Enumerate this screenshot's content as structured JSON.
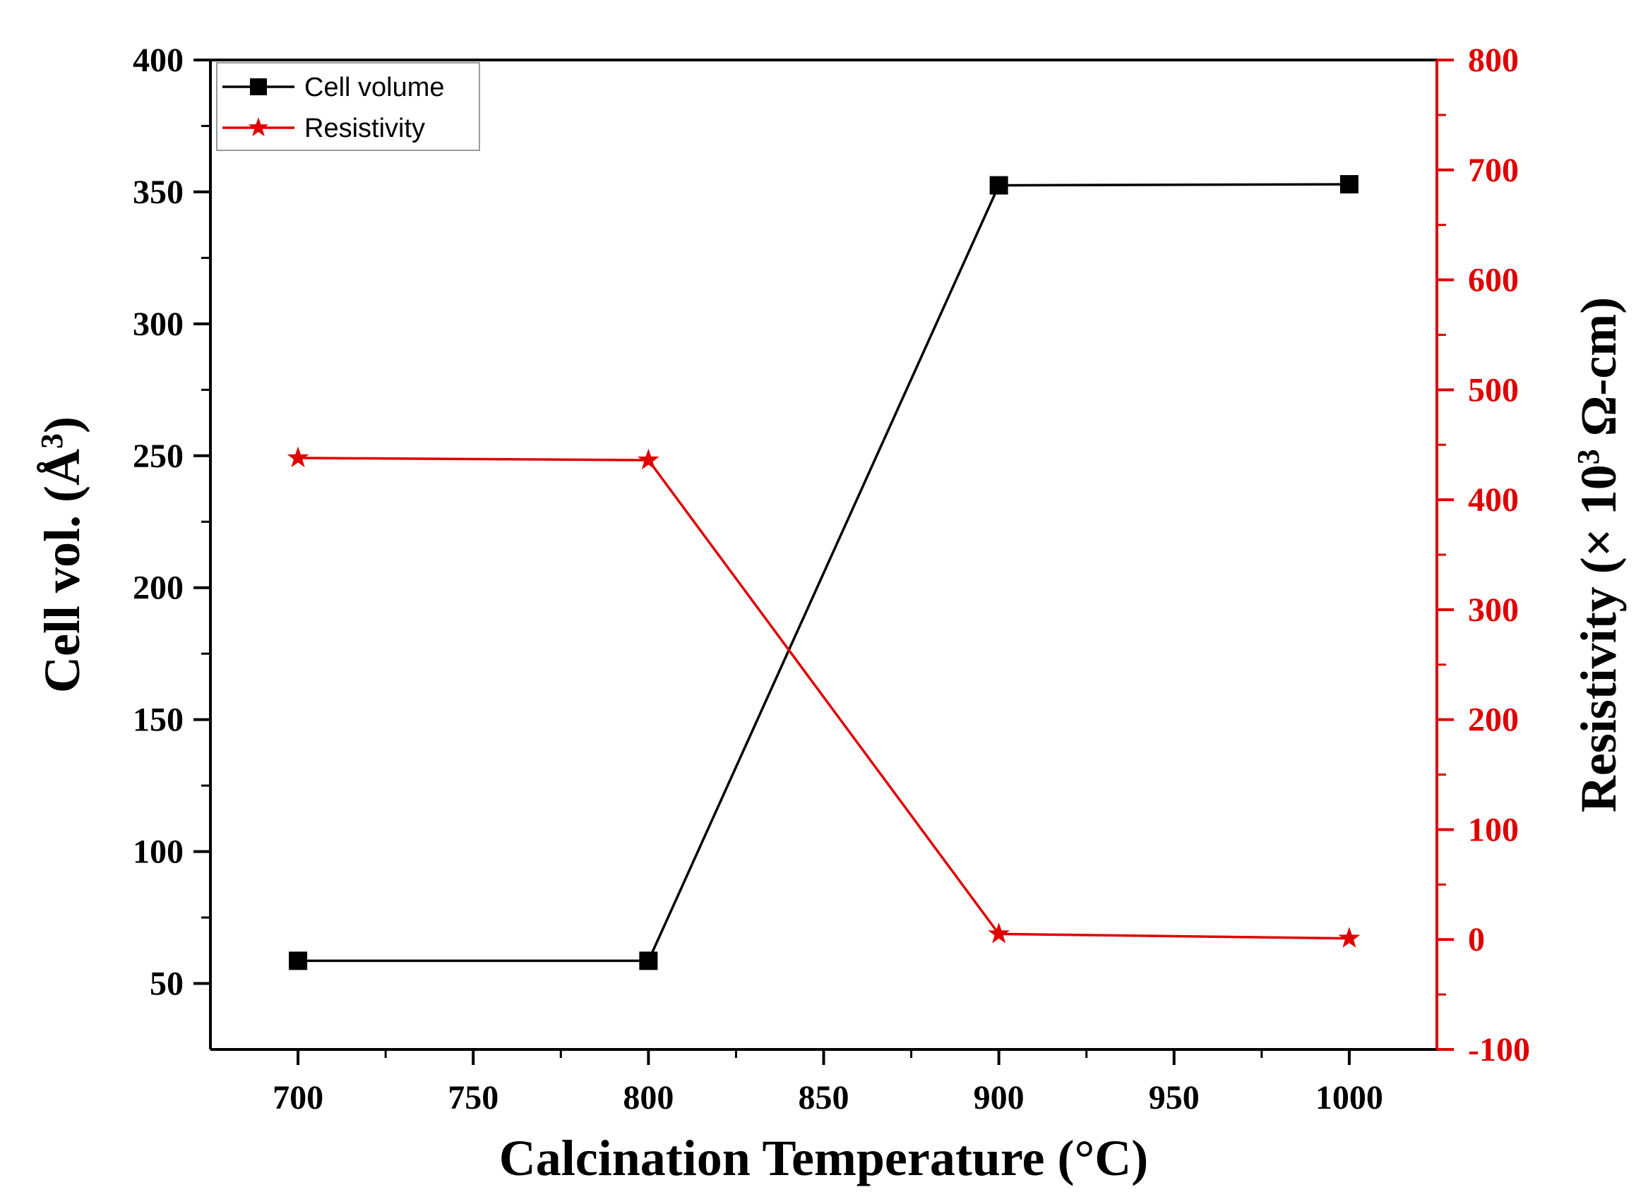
{
  "chart_data": {
    "type": "line",
    "x": [
      700,
      800,
      900,
      1000
    ],
    "xlabel": "Calcination Temperature (°C)",
    "xlim": [
      675,
      1025
    ],
    "xticks": [
      700,
      750,
      800,
      850,
      900,
      950,
      1000
    ],
    "ylabel_left": {
      "prefix": "Cell vol. (Å",
      "sup": "3",
      "suffix": ")"
    },
    "ylim_left": [
      25,
      400
    ],
    "yticks_left": [
      50,
      100,
      150,
      200,
      250,
      300,
      350,
      400
    ],
    "ylabel_right": {
      "prefix": "Resistivity (× 10",
      "sup": "3",
      "suffix": " Ω-cm)"
    },
    "ylim_right": [
      -100,
      800
    ],
    "yticks_right": [
      -100,
      0,
      100,
      200,
      300,
      400,
      500,
      600,
      700,
      800
    ],
    "grid": false,
    "legend_position": "top-left",
    "series": [
      {
        "name": "Cell volume",
        "axis": "left",
        "marker": "square",
        "color": "#000000",
        "values": [
          58.6,
          58.6,
          352.5,
          352.9
        ]
      },
      {
        "name": "Resistivity",
        "axis": "right",
        "marker": "star",
        "color": "#e00000",
        "values": [
          438,
          436,
          5,
          1
        ]
      }
    ]
  }
}
